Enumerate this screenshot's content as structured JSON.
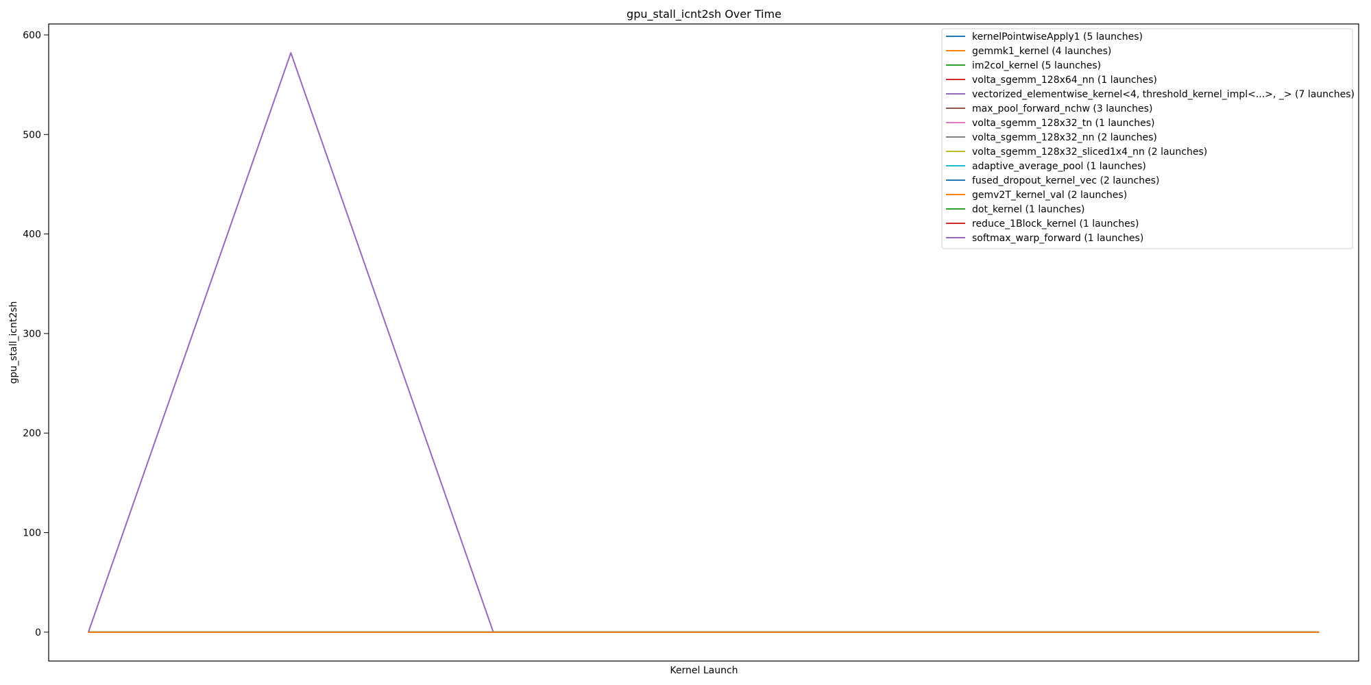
{
  "chart_data": {
    "type": "line",
    "title": "gpu_stall_icnt2sh Over Time",
    "xlabel": "Kernel Launch",
    "ylabel": "gpu_stall_icnt2sh",
    "ylim": [
      -29,
      611
    ],
    "yticks": [
      0,
      100,
      200,
      300,
      400,
      500,
      600
    ],
    "xlim": [
      -2.55,
      81.55
    ],
    "x_ticks_shown": false,
    "legend_position": "top-right",
    "grid": false,
    "series": [
      {
        "name": "kernelPointwiseApply1 (5 launches)",
        "color": "#1f77b4",
        "points": [
          [
            0,
            0
          ],
          [
            20,
            0
          ],
          [
            40,
            0
          ],
          [
            60,
            0
          ],
          [
            79,
            0
          ]
        ]
      },
      {
        "name": "gemmk1_kernel (4 launches)",
        "color": "#ff7f0e",
        "points": [
          [
            0,
            0
          ],
          [
            25,
            0
          ],
          [
            50,
            0
          ],
          [
            79,
            0
          ]
        ]
      },
      {
        "name": "im2col_kernel (5 launches)",
        "color": "#2ca02c",
        "points": [
          [
            0,
            0
          ],
          [
            20,
            0
          ],
          [
            40,
            0
          ],
          [
            60,
            0
          ],
          [
            79,
            0
          ]
        ]
      },
      {
        "name": "volta_sgemm_128x64_nn (1 launches)",
        "color": "#d62728",
        "points": [
          [
            0,
            0
          ]
        ]
      },
      {
        "name": "vectorized_elementwise_kernel<4, threshold_kernel_impl<...>, _> (7 launches)",
        "color": "#9467bd",
        "points": [
          [
            0,
            0
          ],
          [
            13,
            582
          ],
          [
            26,
            0
          ],
          [
            39,
            0
          ],
          [
            52,
            0
          ],
          [
            65,
            0
          ],
          [
            79,
            0
          ]
        ]
      },
      {
        "name": "max_pool_forward_nchw (3 launches)",
        "color": "#8c564b",
        "points": [
          [
            0,
            0
          ],
          [
            40,
            0
          ],
          [
            79,
            0
          ]
        ]
      },
      {
        "name": "volta_sgemm_128x32_tn (1 launches)",
        "color": "#e377c2",
        "points": [
          [
            0,
            0
          ]
        ]
      },
      {
        "name": "volta_sgemm_128x32_nn (2 launches)",
        "color": "#7f7f7f",
        "points": [
          [
            0,
            0
          ],
          [
            79,
            0
          ]
        ]
      },
      {
        "name": "volta_sgemm_128x32_sliced1x4_nn (2 launches)",
        "color": "#bcbd22",
        "points": [
          [
            0,
            0
          ],
          [
            79,
            0
          ]
        ]
      },
      {
        "name": "adaptive_average_pool (1 launches)",
        "color": "#17becf",
        "points": [
          [
            0,
            0
          ]
        ]
      },
      {
        "name": "fused_dropout_kernel_vec (2 launches)",
        "color": "#1f77b4",
        "points": [
          [
            0,
            0
          ],
          [
            79,
            0
          ]
        ]
      },
      {
        "name": "gemv2T_kernel_val (2 launches)",
        "color": "#ff7f0e",
        "points": [
          [
            0,
            0
          ],
          [
            79,
            0
          ]
        ]
      },
      {
        "name": "dot_kernel (1 launches)",
        "color": "#2ca02c",
        "points": [
          [
            0,
            0
          ]
        ]
      },
      {
        "name": "reduce_1Block_kernel (1 launches)",
        "color": "#d62728",
        "points": [
          [
            0,
            0
          ]
        ]
      },
      {
        "name": "softmax_warp_forward (1 launches)",
        "color": "#9467bd",
        "points": [
          [
            0,
            0
          ]
        ]
      }
    ]
  }
}
